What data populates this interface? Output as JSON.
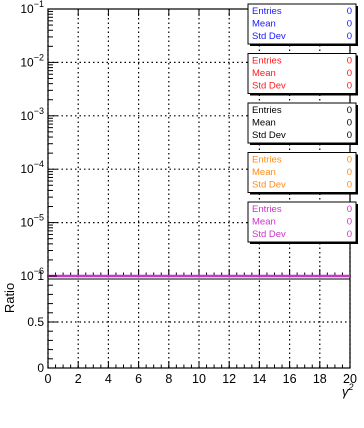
{
  "chart_data": [
    {
      "type": "line",
      "panel": "top",
      "yscale": "log",
      "xlim": [
        0,
        20
      ],
      "ylim": [
        1e-06,
        0.1
      ],
      "y_tick_labels": [
        {
          "value": 0.1,
          "base": "10",
          "exp": "−1"
        },
        {
          "value": 0.01,
          "base": "10",
          "exp": "−2"
        },
        {
          "value": 0.001,
          "base": "10",
          "exp": "−3"
        },
        {
          "value": 0.0001,
          "base": "10",
          "exp": "−4"
        },
        {
          "value": 1e-05,
          "base": "10",
          "exp": "−5"
        },
        {
          "value": 1e-06,
          "base": "10",
          "exp": "−6"
        }
      ],
      "grid": true,
      "series": [],
      "stat_boxes": [
        {
          "color": "#1a1aff",
          "rows": [
            {
              "label": "Entries",
              "value": "0"
            },
            {
              "label": "Mean",
              "value": "0"
            },
            {
              "label": "Std Dev",
              "value": "0"
            }
          ]
        },
        {
          "color": "#ff1a1a",
          "rows": [
            {
              "label": "Entries",
              "value": "0"
            },
            {
              "label": "Mean",
              "value": "0"
            },
            {
              "label": "Std Dev",
              "value": "0"
            }
          ]
        },
        {
          "color": "#000000",
          "rows": [
            {
              "label": "Entries",
              "value": "0"
            },
            {
              "label": "Mean",
              "value": "0"
            },
            {
              "label": "Std Dev",
              "value": "0"
            }
          ]
        },
        {
          "color": "#ff8c1a",
          "rows": [
            {
              "label": "Entries",
              "value": "0"
            },
            {
              "label": "Mean",
              "value": "0"
            },
            {
              "label": "Std Dev",
              "value": "0"
            }
          ]
        },
        {
          "color": "#cc33cc",
          "rows": [
            {
              "label": "Entries",
              "value": "0"
            },
            {
              "label": "Mean",
              "value": "0"
            },
            {
              "label": "Std Dev",
              "value": "0"
            }
          ]
        }
      ]
    },
    {
      "type": "line",
      "panel": "bottom",
      "xlim": [
        0,
        20
      ],
      "ylim": [
        0,
        1
      ],
      "xticks": [
        0,
        2,
        4,
        6,
        8,
        10,
        12,
        14,
        16,
        18,
        20
      ],
      "yticks": [
        0,
        0.5,
        1
      ],
      "y_tick_labels": [
        "0",
        "0.5",
        "1"
      ],
      "ylabel": "Ratio",
      "xlabel_base": "γ",
      "xlabel_sup": "2",
      "grid": true,
      "series": [
        {
          "color": "#cc33cc",
          "x": [
            0,
            20
          ],
          "y": [
            1,
            1
          ]
        }
      ]
    }
  ]
}
